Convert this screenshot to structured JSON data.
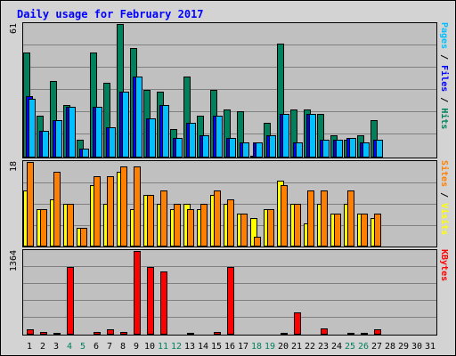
{
  "chart_data": [
    {
      "type": "bar",
      "title": "Daily usage for February 2017",
      "panel": "hits-files-pages",
      "ymax_label": "61",
      "ylim": [
        0,
        61
      ],
      "grid": true,
      "categories": [
        "1",
        "2",
        "3",
        "4",
        "5",
        "6",
        "7",
        "8",
        "9",
        "10",
        "11",
        "12",
        "13",
        "14",
        "15",
        "16",
        "17",
        "18",
        "19",
        "20",
        "21",
        "22",
        "23",
        "24",
        "25",
        "26",
        "27",
        "28",
        "29",
        "30",
        "31"
      ],
      "weekend_days": [
        "4",
        "5",
        "11",
        "12",
        "18",
        "19",
        "25",
        "26"
      ],
      "axis_legend": [
        {
          "text": "Pages",
          "color": "#00c0ff"
        },
        {
          "text": " / ",
          "color": "#000000"
        },
        {
          "text": "Files",
          "color": "#0000ff"
        },
        {
          "text": " / ",
          "color": "#000000"
        },
        {
          "text": "Hits",
          "color": "#00805c"
        }
      ],
      "series": [
        {
          "name": "Hits",
          "color": "#00805c",
          "values": [
            48,
            19,
            35,
            24,
            8,
            48,
            34,
            61,
            50,
            31,
            30,
            13,
            37,
            19,
            31,
            22,
            21,
            1,
            16,
            52,
            22,
            22,
            20,
            10,
            8,
            10,
            17,
            0,
            0,
            0,
            0
          ]
        },
        {
          "name": "Files",
          "color": "#0000ff",
          "values": [
            28,
            12,
            17,
            23,
            4,
            23,
            14,
            30,
            37,
            18,
            24,
            9,
            16,
            10,
            19,
            9,
            7,
            7,
            10,
            20,
            7,
            20,
            8,
            8,
            9,
            7,
            8,
            0,
            0,
            0,
            0
          ]
        },
        {
          "name": "Pages",
          "color": "#00c0ff",
          "values": [
            27,
            12,
            17,
            23,
            4,
            23,
            14,
            30,
            37,
            18,
            24,
            9,
            16,
            10,
            19,
            9,
            7,
            7,
            10,
            20,
            7,
            20,
            8,
            8,
            9,
            7,
            8,
            0,
            0,
            0,
            0
          ]
        }
      ]
    },
    {
      "type": "bar",
      "panel": "sites-visits",
      "ymax_label": "18",
      "ylim": [
        0,
        18
      ],
      "grid": true,
      "categories": [
        "1",
        "2",
        "3",
        "4",
        "5",
        "6",
        "7",
        "8",
        "9",
        "10",
        "11",
        "12",
        "13",
        "14",
        "15",
        "16",
        "17",
        "18",
        "19",
        "20",
        "21",
        "22",
        "23",
        "24",
        "25",
        "26",
        "27",
        "28",
        "29",
        "30",
        "31"
      ],
      "axis_legend": [
        {
          "text": "Sites",
          "color": "#ff8000"
        },
        {
          "text": " / ",
          "color": "#000000"
        },
        {
          "text": "Visits",
          "color": "#ffff00"
        }
      ],
      "series": [
        {
          "name": "Visits",
          "color": "#ffff00",
          "values": [
            12,
            8,
            10,
            9,
            4,
            13,
            9,
            16,
            8,
            11,
            9,
            8,
            9,
            8,
            11,
            9,
            7,
            6,
            8,
            14,
            9,
            5,
            9,
            7,
            9,
            7,
            6,
            0,
            0,
            0,
            0
          ]
        },
        {
          "name": "Sites",
          "color": "#ff8000",
          "values": [
            18,
            8,
            16,
            9,
            4,
            15,
            15,
            17,
            17,
            11,
            12,
            9,
            8,
            9,
            12,
            10,
            7,
            2,
            8,
            13,
            9,
            12,
            12,
            7,
            12,
            7,
            7,
            0,
            0,
            0,
            0
          ]
        }
      ]
    },
    {
      "type": "bar",
      "panel": "kbytes",
      "ymax_label": "1364",
      "ylim": [
        0,
        1364
      ],
      "grid": true,
      "categories": [
        "1",
        "2",
        "3",
        "4",
        "5",
        "6",
        "7",
        "8",
        "9",
        "10",
        "11",
        "12",
        "13",
        "14",
        "15",
        "16",
        "17",
        "18",
        "19",
        "20",
        "21",
        "22",
        "23",
        "24",
        "25",
        "26",
        "27",
        "28",
        "29",
        "30",
        "31"
      ],
      "axis_legend": [
        {
          "text": "KBytes",
          "color": "#ff0000"
        }
      ],
      "series": [
        {
          "name": "KBytes",
          "color": "#ff0000",
          "values": [
            80,
            40,
            30,
            1110,
            15,
            50,
            90,
            40,
            1364,
            1110,
            1030,
            15,
            30,
            20,
            40,
            1110,
            15,
            15,
            15,
            30,
            360,
            15,
            100,
            15,
            30,
            30,
            90,
            15,
            0,
            0,
            0
          ]
        }
      ]
    }
  ],
  "colors": {
    "page_bg": "#d3d3d3",
    "plot_bg": "#c0c0c0",
    "title": "#0000ff",
    "weekday_label": "#000000",
    "weekend_label": "#00805c",
    "grid": "#808080"
  }
}
